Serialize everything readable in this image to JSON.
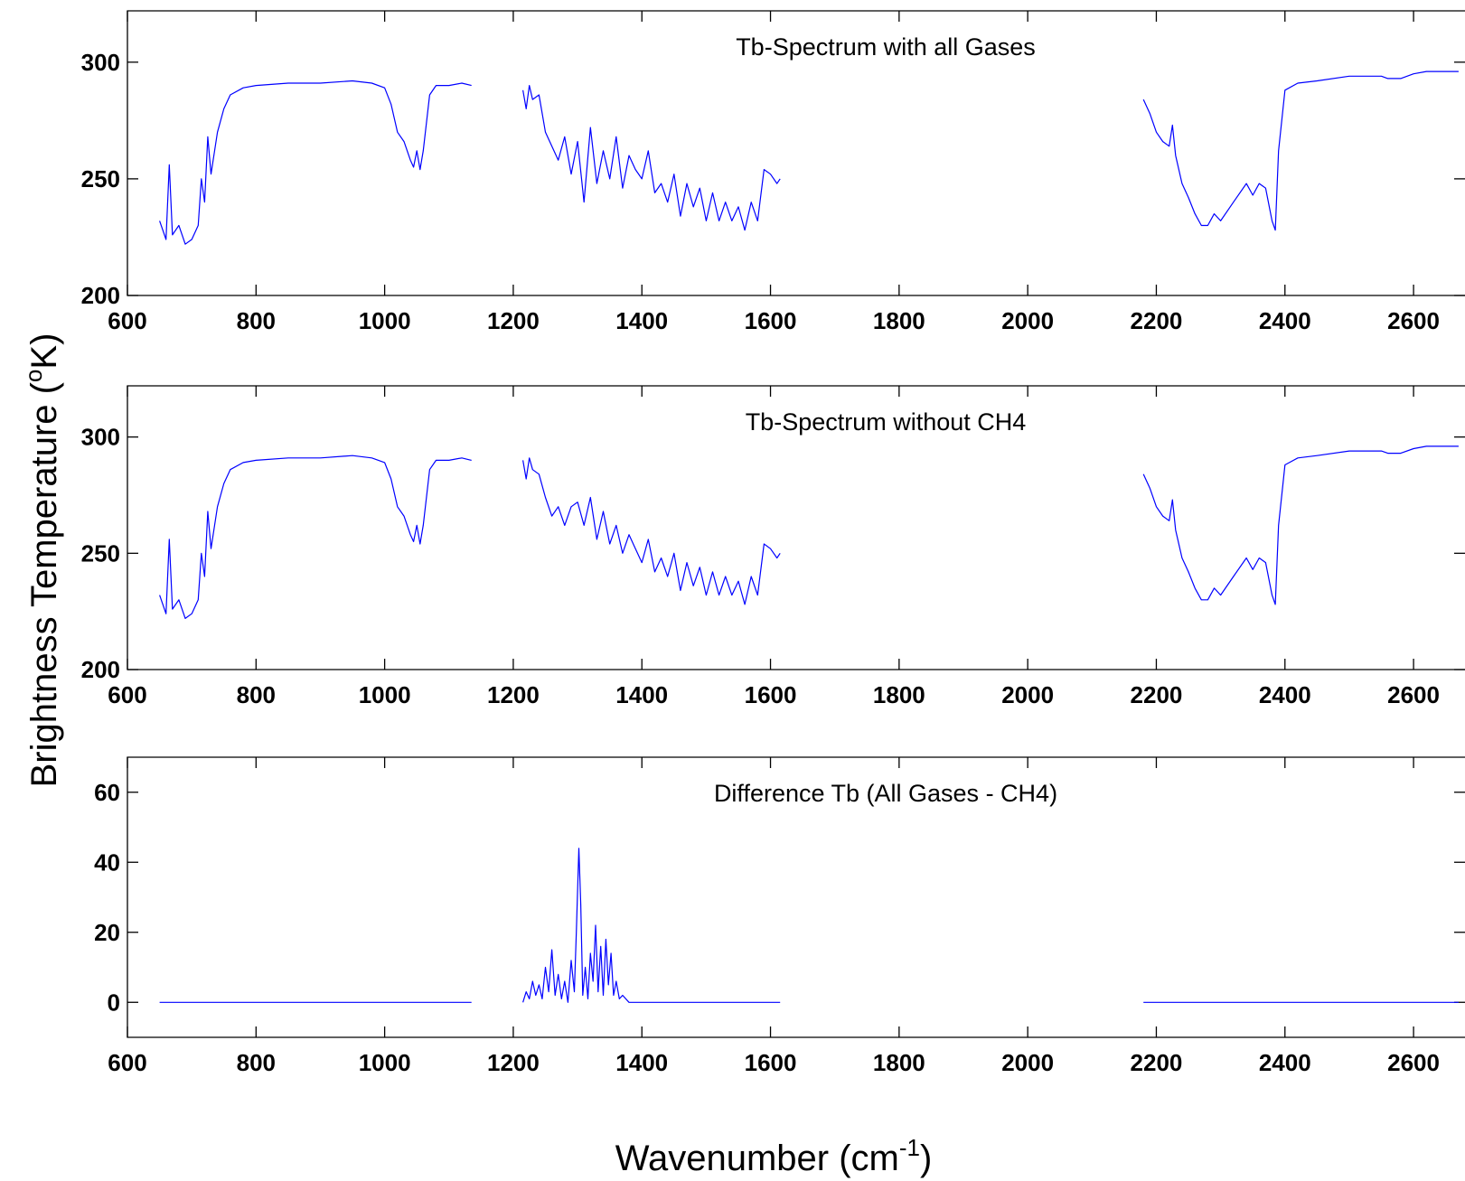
{
  "figure": {
    "ylabel_main": "Brightness Temperature (",
    "ylabel_sup": "o",
    "ylabel_end": "K)",
    "xlabel_main": "Wavenumber (cm",
    "xlabel_sup": "-1",
    "xlabel_end": ")",
    "line_color": "#0000ff"
  },
  "chart_data": [
    {
      "type": "line",
      "title": "Tb-Spectrum with all Gases",
      "xlim": [
        600,
        2680
      ],
      "ylim": [
        200,
        322
      ],
      "xticks": [
        "600",
        "800",
        "1000",
        "1200",
        "1400",
        "1600",
        "1800",
        "2000",
        "2200",
        "2400",
        "2600"
      ],
      "yticks": [
        "200",
        "250",
        "300"
      ],
      "series": [
        {
          "x": [
            650,
            660,
            665,
            670,
            680,
            690,
            700,
            710,
            715,
            720,
            725,
            730,
            740,
            750,
            760,
            780,
            800,
            850,
            900,
            950,
            980,
            1000,
            1010,
            1020,
            1030,
            1040,
            1045,
            1050,
            1055,
            1060,
            1070,
            1080,
            1100,
            1120,
            1135
          ],
          "y": [
            232,
            224,
            256,
            226,
            230,
            222,
            224,
            230,
            250,
            240,
            268,
            252,
            270,
            280,
            286,
            289,
            290,
            291,
            291,
            292,
            291,
            289,
            282,
            270,
            266,
            258,
            255,
            262,
            254,
            262,
            286,
            290,
            290,
            291,
            290
          ]
        },
        {
          "x": [
            1215,
            1220,
            1225,
            1230,
            1240,
            1250,
            1260,
            1270,
            1280,
            1290,
            1300,
            1310,
            1320,
            1330,
            1340,
            1350,
            1360,
            1370,
            1380,
            1390,
            1400,
            1410,
            1420,
            1430,
            1440,
            1450,
            1460,
            1470,
            1480,
            1490,
            1500,
            1510,
            1520,
            1530,
            1540,
            1550,
            1560,
            1570,
            1580,
            1590,
            1600,
            1610,
            1615
          ],
          "y": [
            288,
            280,
            290,
            284,
            286,
            270,
            264,
            258,
            268,
            252,
            266,
            240,
            272,
            248,
            262,
            250,
            268,
            246,
            260,
            254,
            250,
            262,
            244,
            248,
            240,
            252,
            234,
            248,
            238,
            246,
            232,
            244,
            232,
            240,
            232,
            238,
            228,
            240,
            232,
            254,
            252,
            248,
            250
          ]
        },
        {
          "x": [
            2180,
            2190,
            2200,
            2210,
            2220,
            2225,
            2230,
            2240,
            2250,
            2260,
            2270,
            2280,
            2290,
            2300,
            2320,
            2340,
            2350,
            2360,
            2370,
            2380,
            2385,
            2390,
            2400,
            2420,
            2450,
            2500,
            2550,
            2560,
            2580,
            2600,
            2620,
            2640,
            2660,
            2670
          ],
          "y": [
            284,
            278,
            270,
            266,
            264,
            273,
            260,
            248,
            242,
            235,
            230,
            230,
            235,
            232,
            240,
            248,
            243,
            248,
            246,
            232,
            228,
            262,
            288,
            291,
            292,
            294,
            294,
            293,
            293,
            295,
            296,
            296,
            296,
            296
          ]
        }
      ]
    },
    {
      "type": "line",
      "title": "Tb-Spectrum without CH4",
      "xlim": [
        600,
        2680
      ],
      "ylim": [
        200,
        322
      ],
      "xticks": [
        "600",
        "800",
        "1000",
        "1200",
        "1400",
        "1600",
        "1800",
        "2000",
        "2200",
        "2400",
        "2600"
      ],
      "yticks": [
        "200",
        "250",
        "300"
      ],
      "series": [
        {
          "x": [
            650,
            660,
            665,
            670,
            680,
            690,
            700,
            710,
            715,
            720,
            725,
            730,
            740,
            750,
            760,
            780,
            800,
            850,
            900,
            950,
            980,
            1000,
            1010,
            1020,
            1030,
            1040,
            1045,
            1050,
            1055,
            1060,
            1070,
            1080,
            1100,
            1120,
            1135
          ],
          "y": [
            232,
            224,
            256,
            226,
            230,
            222,
            224,
            230,
            250,
            240,
            268,
            252,
            270,
            280,
            286,
            289,
            290,
            291,
            291,
            292,
            291,
            289,
            282,
            270,
            266,
            258,
            255,
            262,
            254,
            262,
            286,
            290,
            290,
            291,
            290
          ]
        },
        {
          "x": [
            1215,
            1220,
            1225,
            1230,
            1240,
            1250,
            1260,
            1270,
            1280,
            1290,
            1300,
            1310,
            1320,
            1330,
            1340,
            1350,
            1360,
            1370,
            1380,
            1390,
            1400,
            1410,
            1420,
            1430,
            1440,
            1450,
            1460,
            1470,
            1480,
            1490,
            1500,
            1510,
            1520,
            1530,
            1540,
            1550,
            1560,
            1570,
            1580,
            1590,
            1600,
            1610,
            1615
          ],
          "y": [
            290,
            282,
            291,
            286,
            284,
            274,
            266,
            270,
            262,
            270,
            272,
            262,
            274,
            256,
            268,
            254,
            262,
            250,
            258,
            252,
            246,
            256,
            242,
            248,
            240,
            250,
            234,
            246,
            236,
            244,
            232,
            242,
            232,
            240,
            232,
            238,
            228,
            240,
            232,
            254,
            252,
            248,
            250
          ]
        },
        {
          "x": [
            2180,
            2190,
            2200,
            2210,
            2220,
            2225,
            2230,
            2240,
            2250,
            2260,
            2270,
            2280,
            2290,
            2300,
            2320,
            2340,
            2350,
            2360,
            2370,
            2380,
            2385,
            2390,
            2400,
            2420,
            2450,
            2500,
            2550,
            2560,
            2580,
            2600,
            2620,
            2640,
            2660,
            2670
          ],
          "y": [
            284,
            278,
            270,
            266,
            264,
            273,
            260,
            248,
            242,
            235,
            230,
            230,
            235,
            232,
            240,
            248,
            243,
            248,
            246,
            232,
            228,
            262,
            288,
            291,
            292,
            294,
            294,
            293,
            293,
            295,
            296,
            296,
            296,
            296
          ]
        }
      ]
    },
    {
      "type": "line",
      "title": "Difference Tb (All Gases - CH4)",
      "xlim": [
        600,
        2680
      ],
      "ylim": [
        -10,
        70
      ],
      "xticks": [
        "600",
        "800",
        "1000",
        "1200",
        "1400",
        "1600",
        "1800",
        "2000",
        "2200",
        "2400",
        "2600"
      ],
      "yticks": [
        "0",
        "20",
        "40",
        "60"
      ],
      "series": [
        {
          "x": [
            650,
            1135
          ],
          "y": [
            0,
            0
          ]
        },
        {
          "x": [
            1215,
            1220,
            1225,
            1230,
            1235,
            1240,
            1245,
            1250,
            1255,
            1260,
            1265,
            1270,
            1275,
            1280,
            1285,
            1290,
            1295,
            1298,
            1302,
            1305,
            1308,
            1312,
            1316,
            1320,
            1324,
            1328,
            1332,
            1336,
            1340,
            1344,
            1348,
            1352,
            1356,
            1360,
            1365,
            1370,
            1380,
            1400,
            1500,
            1615
          ],
          "y": [
            0,
            3,
            1,
            6,
            2,
            5,
            1,
            10,
            3,
            15,
            2,
            8,
            1,
            6,
            0,
            12,
            3,
            20,
            44,
            28,
            2,
            10,
            1,
            14,
            6,
            22,
            3,
            16,
            2,
            18,
            5,
            14,
            2,
            6,
            1,
            2,
            0,
            0,
            0,
            0
          ]
        },
        {
          "x": [
            2180,
            2670
          ],
          "y": [
            0,
            0
          ]
        }
      ]
    }
  ]
}
